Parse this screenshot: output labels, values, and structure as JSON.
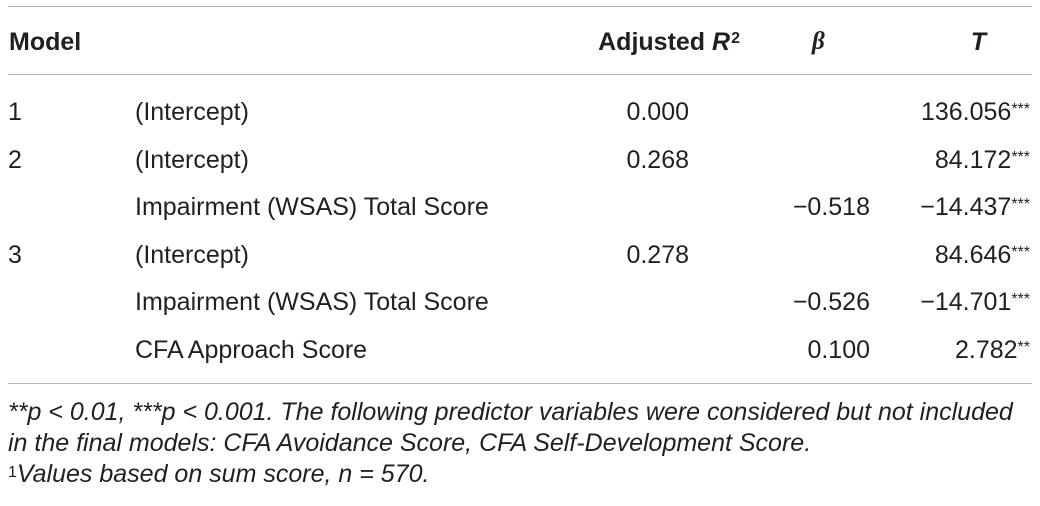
{
  "header": {
    "model": "Model",
    "adjusted": "Adjusted ",
    "r": "R",
    "r_sup": "2",
    "beta": "β",
    "t": "T"
  },
  "rows": [
    {
      "model": "1",
      "predictor": "(Intercept)",
      "adj_r2": "0.000",
      "beta": "",
      "t": "136.056",
      "stars": "***"
    },
    {
      "model": "2",
      "predictor": "(Intercept)",
      "adj_r2": "0.268",
      "beta": "",
      "t": "84.172",
      "stars": "***"
    },
    {
      "model": "",
      "predictor": "Impairment (WSAS) Total Score",
      "adj_r2": "",
      "beta": "−0.518",
      "t": "−14.437",
      "stars": "***"
    },
    {
      "model": "3",
      "predictor": "(Intercept)",
      "adj_r2": "0.278",
      "beta": "",
      "t": "84.646",
      "stars": "***"
    },
    {
      "model": "",
      "predictor": "Impairment (WSAS) Total Score",
      "adj_r2": "",
      "beta": "−0.526",
      "t": "−14.701",
      "stars": "***"
    },
    {
      "model": "",
      "predictor": "CFA Approach Score",
      "adj_r2": "",
      "beta": "0.100",
      "t": "2.782",
      "stars": "**"
    }
  ],
  "notes": {
    "line1": "**p < 0.01, ***p < 0.001. The following predictor variables were considered but not included in the final models: CFA Avoidance Score, CFA Self-Development Score.",
    "footnote_mark": "1",
    "footnote_text": "Values based on sum score, n = 570."
  }
}
